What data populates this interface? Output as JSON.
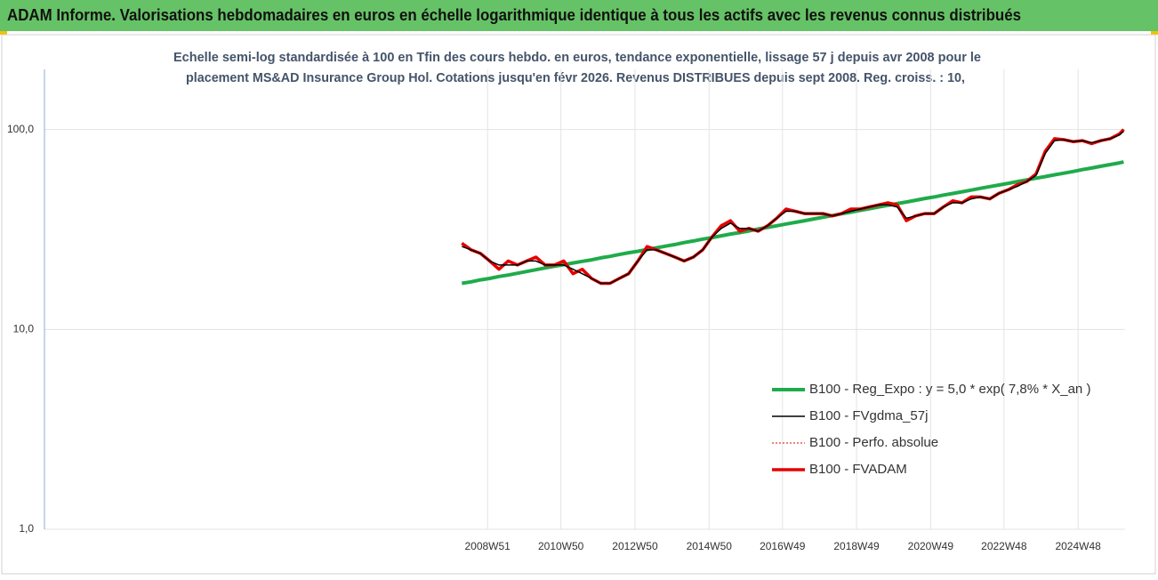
{
  "header": {
    "title": "ADAM Informe. Valorisations hebdomadaires en euros en échelle logarithmique identique à tous les actifs avec les revenus connus distribués"
  },
  "chart_data": {
    "type": "line",
    "subtitle": [
      "Echelle semi-log standardisée à 100 en Tfin des cours hebdo. en euros, tendance exponentielle, lissage 57 j depuis avr 2008 pour le",
      "placement MS&AD Insurance Group Hol. Cotations jusqu'en févr 2026. Revenus DISTRIBUES depuis sept 2008. Reg. croiss. : 10,"
    ],
    "log_y": true,
    "grid": true,
    "legend": "lower-right",
    "xlim": [
      "1997W01",
      "2026W10"
    ],
    "xticks": [
      "2008W51",
      "2010W50",
      "2012W50",
      "2014W50",
      "2016W49",
      "2018W49",
      "2020W49",
      "2022W48",
      "2024W48"
    ],
    "ylim": [
      1,
      200
    ],
    "yticks": [
      {
        "value": 1,
        "label": "1,0"
      },
      {
        "value": 10,
        "label": "10,0"
      },
      {
        "value": 100,
        "label": "100,0"
      }
    ],
    "x": [
      "2008W15",
      "2008W28",
      "2008W41",
      "2009W02",
      "2009W15",
      "2009W28",
      "2009W41",
      "2010W02",
      "2010W15",
      "2010W28",
      "2010W41",
      "2011W02",
      "2011W15",
      "2011W28",
      "2011W41",
      "2012W02",
      "2012W15",
      "2012W28",
      "2012W41",
      "2013W02",
      "2013W15",
      "2013W28",
      "2013W41",
      "2014W02",
      "2014W15",
      "2014W28",
      "2014W41",
      "2015W02",
      "2015W15",
      "2015W28",
      "2015W41",
      "2016W02",
      "2016W15",
      "2016W28",
      "2016W41",
      "2017W02",
      "2017W15",
      "2017W28",
      "2017W41",
      "2018W02",
      "2018W15",
      "2018W28",
      "2018W41",
      "2019W02",
      "2019W15",
      "2019W28",
      "2019W41",
      "2020W02",
      "2020W15",
      "2020W28",
      "2020W41",
      "2021W02",
      "2021W15",
      "2021W28",
      "2021W41",
      "2022W02",
      "2022W15",
      "2022W28",
      "2022W41",
      "2023W02",
      "2023W15",
      "2023W28",
      "2023W41",
      "2024W02",
      "2024W15",
      "2024W28",
      "2024W41",
      "2025W02",
      "2025W15",
      "2025W28",
      "2025W41",
      "2026W02",
      "2026W08"
    ],
    "series": [
      {
        "name": "B100 - Reg_Expo : y = 5,0 * exp( 7,8% *  X_an )",
        "color": "#1fab4a",
        "style": "solid",
        "width": 4,
        "values": [
          17.0,
          17.3,
          17.7,
          18.0,
          18.4,
          18.7,
          19.1,
          19.5,
          19.9,
          20.3,
          20.7,
          21.1,
          21.5,
          21.9,
          22.3,
          22.8,
          23.2,
          23.7,
          24.2,
          24.6,
          25.1,
          25.6,
          26.1,
          26.6,
          27.2,
          27.7,
          28.3,
          28.8,
          29.4,
          30.0,
          30.5,
          31.1,
          31.8,
          32.4,
          33.0,
          33.7,
          34.3,
          35.0,
          35.7,
          36.4,
          37.1,
          37.9,
          38.6,
          39.4,
          40.2,
          41.0,
          41.8,
          42.6,
          43.4,
          44.3,
          45.2,
          46.0,
          47.0,
          47.9,
          48.8,
          49.8,
          50.8,
          51.8,
          52.8,
          53.8,
          54.9,
          56.0,
          57.1,
          58.2,
          59.4,
          60.5,
          61.7,
          63.0,
          64.2,
          65.5,
          66.8,
          68.1,
          68.8
        ]
      },
      {
        "name": "B100 - FVgdma_57j",
        "color": "#000000",
        "style": "solid",
        "width": 1.5,
        "values": [
          26,
          25,
          24,
          22,
          21,
          21,
          21,
          22,
          22,
          21,
          21,
          21,
          20,
          19,
          18,
          17,
          17,
          18,
          19,
          22,
          25,
          25,
          24,
          23,
          22,
          23,
          25,
          29,
          32,
          34,
          32,
          32,
          31,
          33,
          36,
          39,
          39,
          38,
          38,
          38,
          37,
          38,
          39,
          40,
          41,
          42,
          42,
          41,
          36,
          37,
          38,
          38,
          41,
          43,
          43,
          45,
          46,
          45,
          48,
          50,
          52,
          55,
          59,
          76,
          88,
          89,
          87,
          88,
          86,
          88,
          90,
          94,
          98
        ]
      },
      {
        "name": "B100 - Perfo. absolue",
        "color": "#e00000",
        "style": "dotted",
        "width": 1,
        "values": [
          27,
          25,
          24,
          22,
          20,
          22,
          21,
          22,
          23,
          21,
          21,
          22,
          19,
          20,
          18,
          17,
          17,
          18,
          19,
          22,
          26,
          25,
          24,
          23,
          22,
          23,
          25,
          29,
          33,
          35,
          31,
          32,
          31,
          33,
          36,
          40,
          39,
          38,
          38,
          38,
          37,
          38,
          40,
          40,
          41,
          42,
          43,
          42,
          35,
          37,
          38,
          38,
          41,
          44,
          43,
          46,
          46,
          45,
          48,
          50,
          53,
          55,
          60,
          78,
          90,
          89,
          87,
          88,
          85,
          88,
          90,
          95,
          100
        ]
      },
      {
        "name": "B100 - FVADAM",
        "color": "#e60000",
        "style": "solid",
        "width": 3.5,
        "values": [
          27,
          25,
          24,
          22,
          20,
          22,
          21,
          22,
          23,
          21,
          21,
          22,
          19,
          20,
          18,
          17,
          17,
          18,
          19,
          22,
          26,
          25,
          24,
          23,
          22,
          23,
          25,
          29,
          33,
          35,
          31,
          32,
          31,
          33,
          36,
          40,
          39,
          38,
          38,
          38,
          37,
          38,
          40,
          40,
          41,
          42,
          43,
          42,
          35,
          37,
          38,
          38,
          41,
          44,
          43,
          46,
          46,
          45,
          48,
          50,
          53,
          55,
          60,
          78,
          90,
          89,
          87,
          88,
          85,
          88,
          90,
          95,
          100
        ]
      }
    ],
    "draw_order": [
      0,
      3,
      2,
      1
    ]
  }
}
